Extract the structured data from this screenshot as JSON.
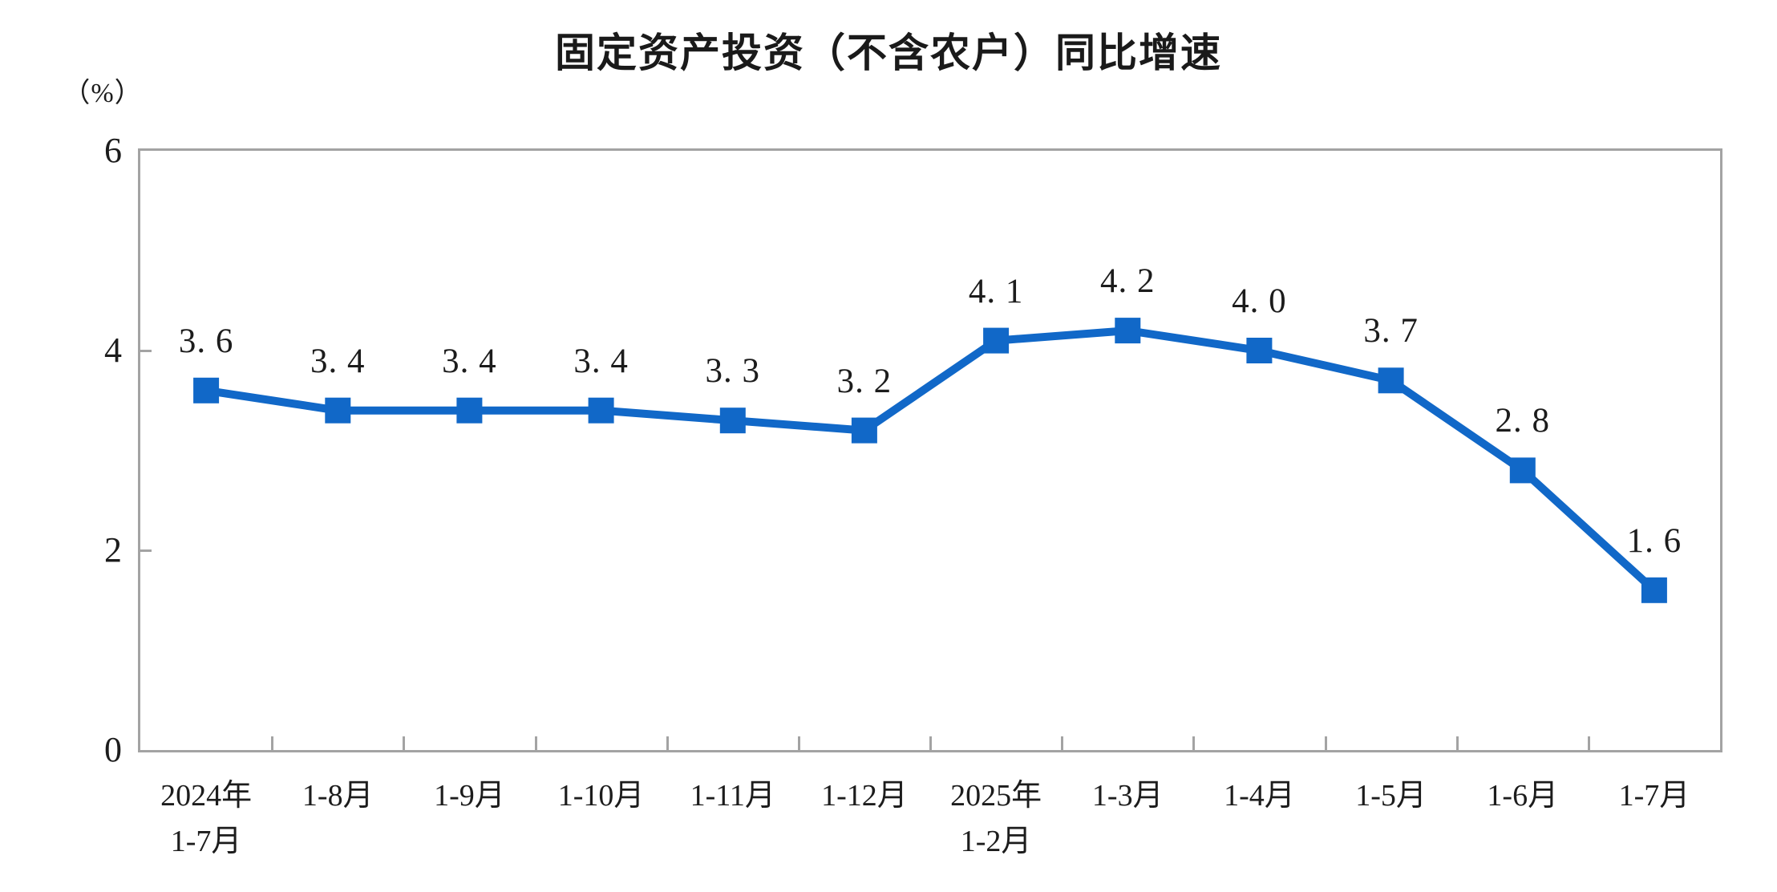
{
  "chart": {
    "title": "固定资产投资（不含农户）同比增速",
    "unit_label": "（%）"
  },
  "chart_data": {
    "type": "line",
    "title": "固定资产投资（不含农户）同比增速",
    "ylabel": "（%）",
    "categories": [
      "2024年1-7月",
      "1-8月",
      "1-9月",
      "1-10月",
      "1-11月",
      "1-12月",
      "2025年1-2月",
      "1-3月",
      "1-4月",
      "1-5月",
      "1-6月",
      "1-7月"
    ],
    "x_labels_display": [
      "2024年\n1-7月",
      "1-8月",
      "1-9月",
      "1-10月",
      "1-11月",
      "1-12月",
      "2025年\n1-2月",
      "1-3月",
      "1-4月",
      "1-5月",
      "1-6月",
      "1-7月"
    ],
    "values": [
      3.6,
      3.4,
      3.4,
      3.4,
      3.3,
      3.2,
      4.1,
      4.2,
      4.0,
      3.7,
      2.8,
      1.6
    ],
    "point_labels": [
      "3. 6",
      "3. 4",
      "3. 4",
      "3. 4",
      "3. 3",
      "3. 2",
      "4. 1",
      "4. 2",
      "4. 0",
      "3. 7",
      "2. 8",
      "1. 6"
    ],
    "ylim": [
      0,
      6
    ],
    "y_ticks": [
      0,
      2,
      4,
      6
    ],
    "grid": false,
    "legend": false,
    "marker": "square",
    "line_color": "#1168C8",
    "axis_color": "#a3a3a3",
    "text_color": "#1c1c1c"
  }
}
